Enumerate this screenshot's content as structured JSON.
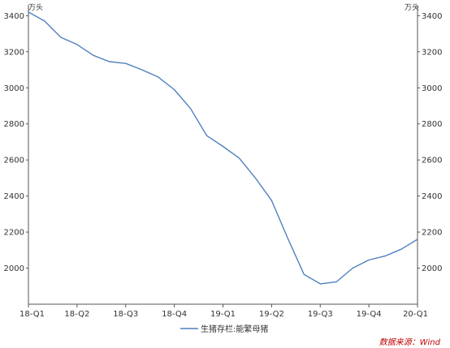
{
  "chart_data": {
    "type": "line",
    "title": "",
    "xlabel": "",
    "ylabel": "",
    "y_unit_left": "万头",
    "y_unit_right": "万头",
    "ylim": [
      1800,
      3460
    ],
    "yticks": [
      2000,
      2200,
      2400,
      2600,
      2800,
      3000,
      3200,
      3400
    ],
    "xlim": [
      0,
      24
    ],
    "xtick_labels": [
      {
        "x": 0,
        "label": "18-Q1"
      },
      {
        "x": 3,
        "label": "18-Q2"
      },
      {
        "x": 6,
        "label": "18-Q3"
      },
      {
        "x": 9,
        "label": "18-Q4"
      },
      {
        "x": 12,
        "label": "19-Q1"
      },
      {
        "x": 15,
        "label": "19-Q2"
      },
      {
        "x": 18,
        "label": "19-Q3"
      },
      {
        "x": 21,
        "label": "19-Q4"
      },
      {
        "x": 24,
        "label": "20-Q1"
      }
    ],
    "grid": false,
    "legend_position": "bottom-center",
    "series": [
      {
        "name": "生猪存栏:能繁母猪",
        "color": "#4f81bd",
        "x": [
          0,
          1,
          2,
          3,
          4,
          5,
          6,
          7,
          8,
          9,
          10,
          11,
          12,
          13,
          14,
          15,
          16,
          17,
          18,
          19,
          20,
          21,
          22,
          23,
          24
        ],
        "values": [
          3420,
          3370,
          3280,
          3240,
          3180,
          3145,
          3135,
          3100,
          3060,
          2990,
          2885,
          2735,
          2675,
          2610,
          2500,
          2375,
          2165,
          1965,
          1913,
          1924,
          2000,
          2045,
          2067,
          2105,
          2160
        ]
      }
    ]
  },
  "source_note": "数据来源：Wind",
  "source_color": "#c00000"
}
